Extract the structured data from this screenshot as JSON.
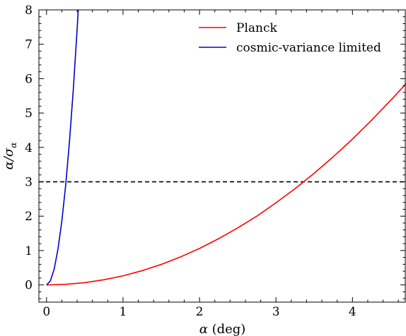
{
  "chart_data": {
    "type": "line",
    "xlabel": "α (deg)",
    "ylabel": "α/σ",
    "ylabel_subscript": "α",
    "xlim": [
      -0.1,
      4.7
    ],
    "ylim": [
      -0.5,
      8
    ],
    "xticks": [
      0,
      1,
      2,
      3,
      4
    ],
    "yticks": [
      0,
      1,
      2,
      3,
      4,
      5,
      6,
      7,
      8
    ],
    "grid": false,
    "legend_position": "top-right",
    "series": [
      {
        "name": "Planck",
        "color": "#ff0000",
        "x": [
          0.0,
          0.25,
          0.5,
          0.75,
          1.0,
          1.25,
          1.5,
          1.75,
          2.0,
          2.25,
          2.5,
          2.75,
          3.0,
          3.25,
          3.5,
          3.75,
          4.0,
          4.25,
          4.5,
          4.7
        ],
        "y": [
          0.0,
          0.017,
          0.066,
          0.15,
          0.265,
          0.415,
          0.597,
          0.813,
          1.06,
          1.345,
          1.66,
          2.0,
          2.39,
          2.8,
          3.25,
          3.73,
          4.24,
          4.79,
          5.37,
          5.85
        ]
      },
      {
        "name": "cosmic-variance limited",
        "color": "#0000cc",
        "x": [
          0.0,
          0.05,
          0.1,
          0.15,
          0.2,
          0.25,
          0.3,
          0.35,
          0.4,
          0.44
        ],
        "y": [
          0.0,
          0.116,
          0.465,
          1.05,
          1.86,
          2.9,
          4.18,
          5.69,
          7.44,
          9.0
        ]
      }
    ],
    "reference_lines": [
      {
        "orientation": "horizontal",
        "y": 3,
        "color": "#000000",
        "style": "dashed"
      }
    ]
  }
}
